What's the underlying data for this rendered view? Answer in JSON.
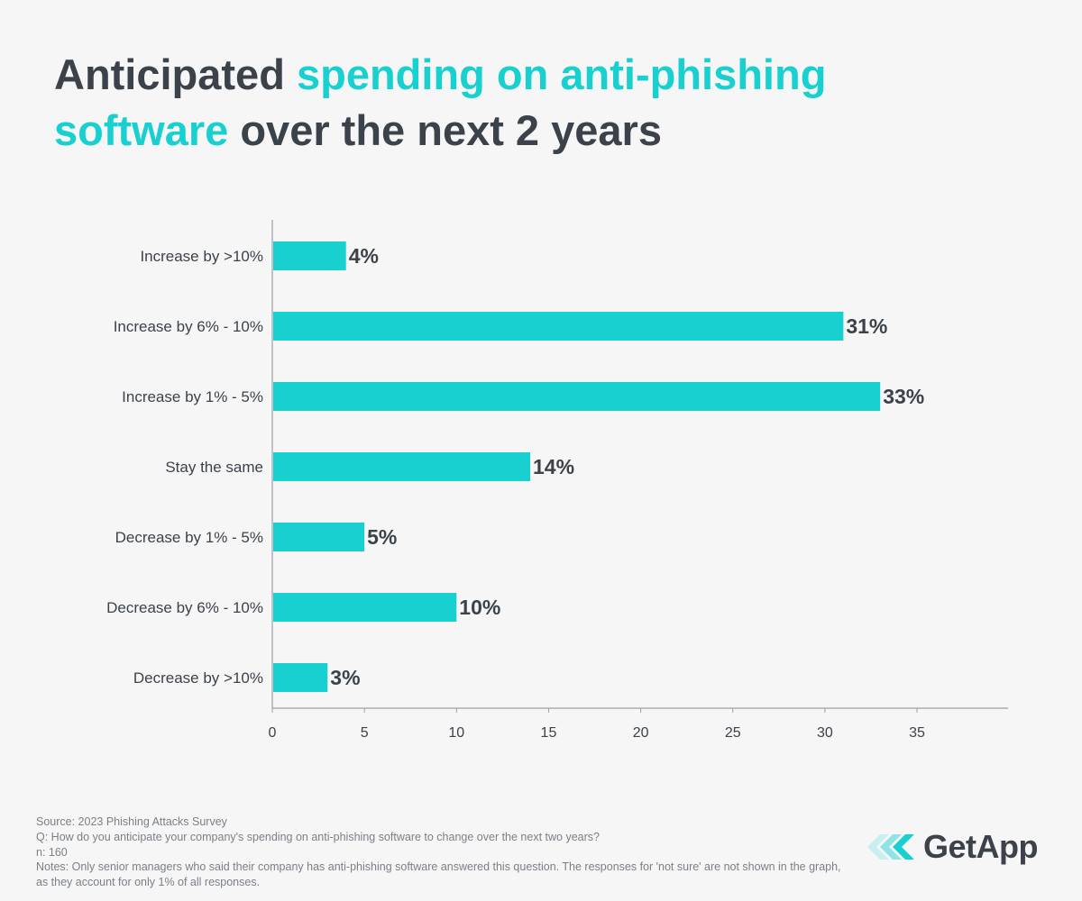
{
  "title": {
    "part1": "Anticipated ",
    "accent1": "spending on anti-phishing",
    "accent2": "software",
    "part2": " over the next 2 years"
  },
  "chart_data": {
    "type": "bar",
    "orientation": "horizontal",
    "title": "Anticipated spending on anti-phishing software over the next 2 years",
    "categories": [
      "Increase by >10%",
      "Increase by 6% - 10%",
      "Increase by 1% - 5%",
      "Stay the same",
      "Decrease by 1% - 5%",
      "Decrease by 6% - 10%",
      "Decrease by >10%"
    ],
    "values": [
      4,
      31,
      33,
      14,
      5,
      10,
      3
    ],
    "value_labels": [
      "4%",
      "31%",
      "33%",
      "14%",
      "5%",
      "10%",
      "3%"
    ],
    "xticks": [
      0,
      5,
      10,
      15,
      20,
      25,
      30,
      35
    ],
    "xlim": [
      0,
      40
    ],
    "xlabel": "",
    "ylabel": "",
    "grid": false,
    "bar_color": "#19d0d0"
  },
  "footer": {
    "source": "Source: 2023 Phishing Attacks Survey",
    "question": "Q: How do you anticipate your company's spending on anti-phishing software to change over the next two years?",
    "n": "n: 160",
    "notes": "Notes: Only senior managers who said their company has anti-phishing software answered this question. The responses for 'not sure' are not shown in the graph, as they account for only 1% of all responses."
  },
  "logo": {
    "text": "GetApp",
    "icon": "getapp-chevrons-icon"
  },
  "colors": {
    "accent": "#19d0d0",
    "text": "#3c424a",
    "background": "#f6f6f6"
  }
}
